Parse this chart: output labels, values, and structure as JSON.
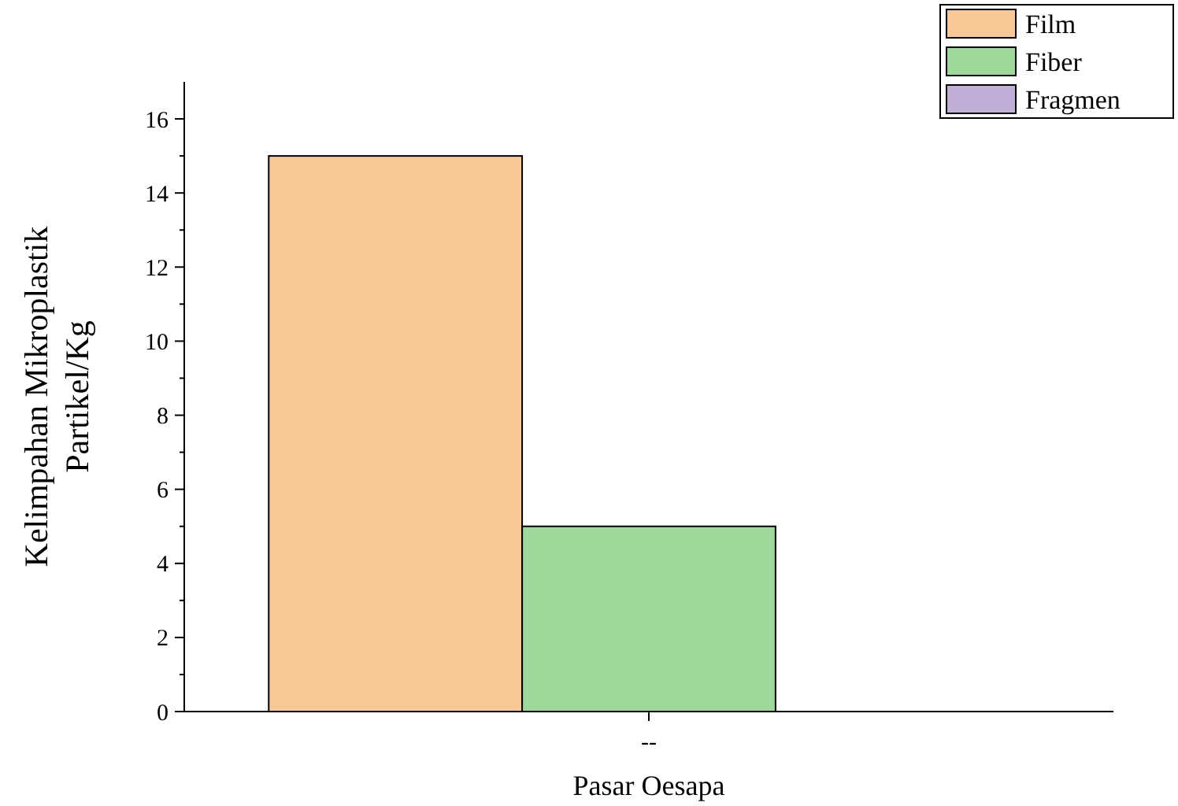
{
  "chart_data": {
    "type": "bar",
    "xlabel": "Pasar Oesapa",
    "ylabel": "Kelimpahan Mikroplastik\nPartikel/Kg",
    "categories": [
      "--"
    ],
    "series": [
      {
        "name": "Film",
        "color": "#f9c897",
        "values": [
          15
        ]
      },
      {
        "name": "Fiber",
        "color": "#9ed89a",
        "values": [
          5
        ]
      },
      {
        "name": "Fragmen",
        "color": "#c0b0d8",
        "values": [
          0
        ]
      }
    ],
    "ylim": [
      0,
      17
    ],
    "yticks": [
      0,
      {
        "value": 1,
        "label": null
      },
      2,
      {
        "value": 3,
        "label": null
      },
      4,
      {
        "value": 5,
        "label": null
      },
      6,
      {
        "value": 7,
        "label": null
      },
      8,
      {
        "value": 9,
        "label": null
      },
      10,
      {
        "value": 11,
        "label": null
      },
      12,
      {
        "value": 13,
        "label": null
      },
      14,
      {
        "value": 15,
        "label": null
      },
      16
    ],
    "grid": false,
    "legend": "top right"
  }
}
